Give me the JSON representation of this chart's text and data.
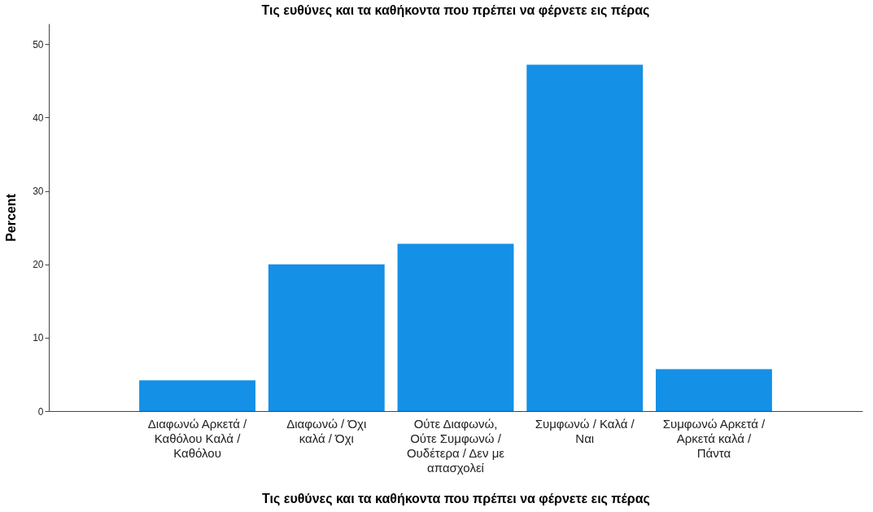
{
  "chart_data": {
    "type": "bar",
    "title": "Τις ευθύνες και τα καθήκοντα που πρέπει να φέρνετε εις πέρας",
    "xlabel": "Τις ευθύνες και τα καθήκοντα που πρέπει να φέρνετε εις πέρας",
    "ylabel": "Percent",
    "categories": [
      "Διαφωνώ Αρκετά /\nΚαθόλου Καλά /\nΚαθόλου",
      "Διαφωνώ / Όχι\nκαλά / Όχι",
      "Ούτε Διαφωνώ,\nΟύτε Συμφωνώ /\nΟυδέτερα / Δεν με\nαπασχολεί",
      "Συμφωνώ / Καλά /\nΝαι",
      "Συμφωνώ Αρκετά /\nΑρκετά καλά /\nΠάντα"
    ],
    "values": [
      4.2,
      20.0,
      22.8,
      47.2,
      5.7
    ],
    "color": "#1490e6",
    "ylim": [
      0,
      52.8
    ],
    "yticks": [
      0,
      10,
      20,
      30,
      40,
      50
    ],
    "grid": false
  }
}
